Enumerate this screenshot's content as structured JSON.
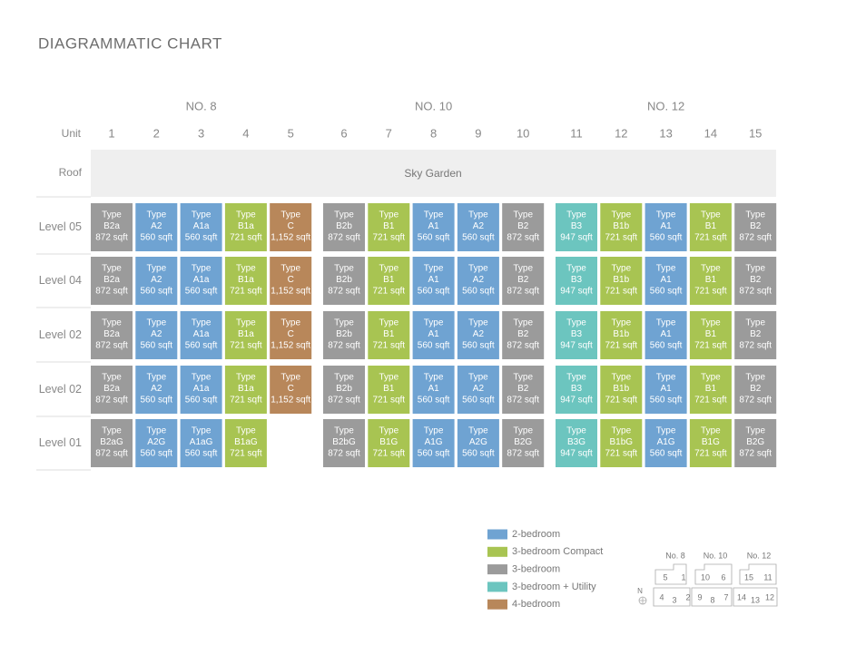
{
  "title": "DIAGRAMMATIC CHART",
  "blocks": [
    {
      "name": "NO. 8",
      "units": [
        "1",
        "2",
        "3",
        "4",
        "5"
      ]
    },
    {
      "name": "NO. 10",
      "units": [
        "6",
        "7",
        "8",
        "9",
        "10"
      ]
    },
    {
      "name": "NO. 12",
      "units": [
        "11",
        "12",
        "13",
        "14",
        "15"
      ]
    }
  ],
  "unit_label": "Unit",
  "unit_colors": [
    "#9b9b9b",
    "#6fa3d2",
    "#6fa3d2",
    "#a8c452",
    "#b8875a",
    "#9b9b9b",
    "#a8c452",
    "#6fa3d2",
    "#6fa3d2",
    "#9b9b9b",
    "#6cc5bf",
    "#a8c452",
    "#6fa3d2",
    "#a8c452",
    "#9b9b9b"
  ],
  "roof": {
    "label": "Roof",
    "text": "Sky Garden"
  },
  "rows": [
    {
      "level": "Level 05",
      "cells": [
        [
          "Type",
          "B2a",
          "872 sqft"
        ],
        [
          "Type",
          "A2",
          "560 sqft"
        ],
        [
          "Type",
          "A1a",
          "560 sqft"
        ],
        [
          "Type",
          "B1a",
          "721 sqft"
        ],
        [
          "Type",
          "C",
          "1,152 sqft"
        ],
        [
          "Type",
          "B2b",
          "872 sqft"
        ],
        [
          "Type",
          "B1",
          "721 sqft"
        ],
        [
          "Type",
          "A1",
          "560 sqft"
        ],
        [
          "Type",
          "A2",
          "560 sqft"
        ],
        [
          "Type",
          "B2",
          "872 sqft"
        ],
        [
          "Type",
          "B3",
          "947 sqft"
        ],
        [
          "Type",
          "B1b",
          "721 sqft"
        ],
        [
          "Type",
          "A1",
          "560 sqft"
        ],
        [
          "Type",
          "B1",
          "721 sqft"
        ],
        [
          "Type",
          "B2",
          "872 sqft"
        ]
      ]
    },
    {
      "level": "Level 04",
      "cells": [
        [
          "Type",
          "B2a",
          "872 sqft"
        ],
        [
          "Type",
          "A2",
          "560 sqft"
        ],
        [
          "Type",
          "A1a",
          "560 sqft"
        ],
        [
          "Type",
          "B1a",
          "721 sqft"
        ],
        [
          "Type",
          "C",
          "1,152 sqft"
        ],
        [
          "Type",
          "B2b",
          "872 sqft"
        ],
        [
          "Type",
          "B1",
          "721 sqft"
        ],
        [
          "Type",
          "A1",
          "560 sqft"
        ],
        [
          "Type",
          "A2",
          "560 sqft"
        ],
        [
          "Type",
          "B2",
          "872 sqft"
        ],
        [
          "Type",
          "B3",
          "947 sqft"
        ],
        [
          "Type",
          "B1b",
          "721 sqft"
        ],
        [
          "Type",
          "A1",
          "560 sqft"
        ],
        [
          "Type",
          "B1",
          "721 sqft"
        ],
        [
          "Type",
          "B2",
          "872 sqft"
        ]
      ]
    },
    {
      "level": "Level 02",
      "cells": [
        [
          "Type",
          "B2a",
          "872 sqft"
        ],
        [
          "Type",
          "A2",
          "560 sqft"
        ],
        [
          "Type",
          "A1a",
          "560 sqft"
        ],
        [
          "Type",
          "B1a",
          "721 sqft"
        ],
        [
          "Type",
          "C",
          "1,152 sqft"
        ],
        [
          "Type",
          "B2b",
          "872 sqft"
        ],
        [
          "Type",
          "B1",
          "721 sqft"
        ],
        [
          "Type",
          "A1",
          "560 sqft"
        ],
        [
          "Type",
          "A2",
          "560 sqft"
        ],
        [
          "Type",
          "B2",
          "872 sqft"
        ],
        [
          "Type",
          "B3",
          "947 sqft"
        ],
        [
          "Type",
          "B1b",
          "721 sqft"
        ],
        [
          "Type",
          "A1",
          "560 sqft"
        ],
        [
          "Type",
          "B1",
          "721 sqft"
        ],
        [
          "Type",
          "B2",
          "872 sqft"
        ]
      ]
    },
    {
      "level": "Level 02",
      "cells": [
        [
          "Type",
          "B2a",
          "872 sqft"
        ],
        [
          "Type",
          "A2",
          "560 sqft"
        ],
        [
          "Type",
          "A1a",
          "560 sqft"
        ],
        [
          "Type",
          "B1a",
          "721 sqft"
        ],
        [
          "Type",
          "C",
          "1,152 sqft"
        ],
        [
          "Type",
          "B2b",
          "872 sqft"
        ],
        [
          "Type",
          "B1",
          "721 sqft"
        ],
        [
          "Type",
          "A1",
          "560 sqft"
        ],
        [
          "Type",
          "A2",
          "560 sqft"
        ],
        [
          "Type",
          "B2",
          "872 sqft"
        ],
        [
          "Type",
          "B3",
          "947 sqft"
        ],
        [
          "Type",
          "B1b",
          "721 sqft"
        ],
        [
          "Type",
          "A1",
          "560 sqft"
        ],
        [
          "Type",
          "B1",
          "721 sqft"
        ],
        [
          "Type",
          "B2",
          "872 sqft"
        ]
      ]
    },
    {
      "level": "Level 01",
      "cells": [
        [
          "Type",
          "B2aG",
          "872 sqft"
        ],
        [
          "Type",
          "A2G",
          "560 sqft"
        ],
        [
          "Type",
          "A1aG",
          "560 sqft"
        ],
        [
          "Type",
          "B1aG",
          "721 sqft"
        ],
        null,
        [
          "Type",
          "B2bG",
          "872 sqft"
        ],
        [
          "Type",
          "B1G",
          "721 sqft"
        ],
        [
          "Type",
          "A1G",
          "560 sqft"
        ],
        [
          "Type",
          "A2G",
          "560 sqft"
        ],
        [
          "Type",
          "B2G",
          "872 sqft"
        ],
        [
          "Type",
          "B3G",
          "947 sqft"
        ],
        [
          "Type",
          "B1bG",
          "721 sqft"
        ],
        [
          "Type",
          "A1G",
          "560 sqft"
        ],
        [
          "Type",
          "B1G",
          "721 sqft"
        ],
        [
          "Type",
          "B2G",
          "872 sqft"
        ]
      ]
    }
  ],
  "legend": [
    {
      "name": "2-bedroom",
      "color": "#6fa3d2"
    },
    {
      "name": "3-bedroom Compact",
      "color": "#a8c452"
    },
    {
      "name": "3-bedroom",
      "color": "#9b9b9b"
    },
    {
      "name": "3-bedroom + Utility",
      "color": "#6cc5bf"
    },
    {
      "name": "4-bedroom",
      "color": "#b8875a"
    }
  ],
  "key_plan": {
    "blocks": [
      "No. 8",
      "No. 10",
      "No. 12"
    ],
    "units": [
      "5",
      "1",
      "10",
      "6",
      "15",
      "11",
      "4",
      "3",
      "2",
      "9",
      "8",
      "7",
      "14",
      "13",
      "12"
    ],
    "north": "N"
  }
}
